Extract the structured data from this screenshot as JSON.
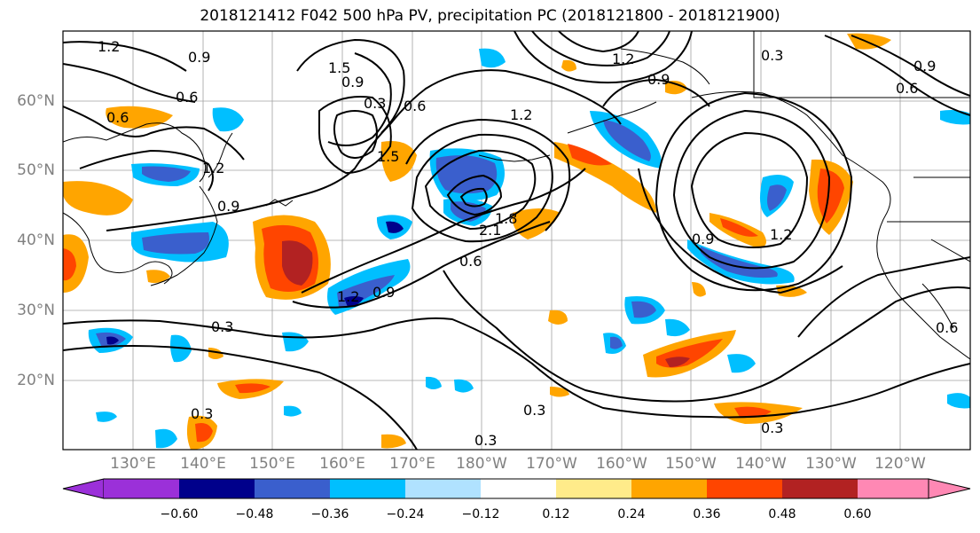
{
  "title": "2018121412 F042 500 hPa PV, precipitation PC (2018121800 - 2018121900)",
  "lat_labels": [
    "60°N",
    "50°N",
    "40°N",
    "30°N",
    "20°N"
  ],
  "lon_labels": [
    "130°E",
    "140°E",
    "150°E",
    "160°E",
    "170°E",
    "180°W",
    "170°W",
    "160°W",
    "150°W",
    "140°W",
    "130°W",
    "120°W"
  ],
  "colorbar": {
    "ticks": [
      "−0.60",
      "−0.48",
      "−0.36",
      "−0.24",
      "−0.12",
      "0.12",
      "0.24",
      "0.36",
      "0.48",
      "0.60"
    ],
    "colors": [
      "#9b30d9",
      "#00008b",
      "#3a5fcd",
      "#00bfff",
      "#b0e2ff",
      "#ffffff",
      "#ffeb8a",
      "#ffa500",
      "#ff4500",
      "#b22222",
      "#ff88b4"
    ]
  },
  "contour_labels": [
    {
      "text": "1.2"
    },
    {
      "text": "0.9"
    },
    {
      "text": "0.6"
    },
    {
      "text": "0.6"
    },
    {
      "text": "1.5"
    },
    {
      "text": "0.9"
    },
    {
      "text": "0.3"
    },
    {
      "text": "0.6"
    },
    {
      "text": "1.2"
    },
    {
      "text": "0.9"
    },
    {
      "text": "0.3"
    },
    {
      "text": "0.6"
    },
    {
      "text": "1.5"
    },
    {
      "text": "1.2"
    },
    {
      "text": "0.9"
    },
    {
      "text": "0.6"
    },
    {
      "text": "1.2"
    },
    {
      "text": "0.9"
    },
    {
      "text": "0.3"
    },
    {
      "text": "0.3"
    },
    {
      "text": "0.3"
    },
    {
      "text": "0.3"
    },
    {
      "text": "2.1"
    },
    {
      "text": "1.8"
    },
    {
      "text": "1.2"
    },
    {
      "text": "0.9"
    },
    {
      "text": "0.3"
    },
    {
      "text": "0.9"
    },
    {
      "text": "1.2"
    },
    {
      "text": "0.6"
    }
  ]
}
